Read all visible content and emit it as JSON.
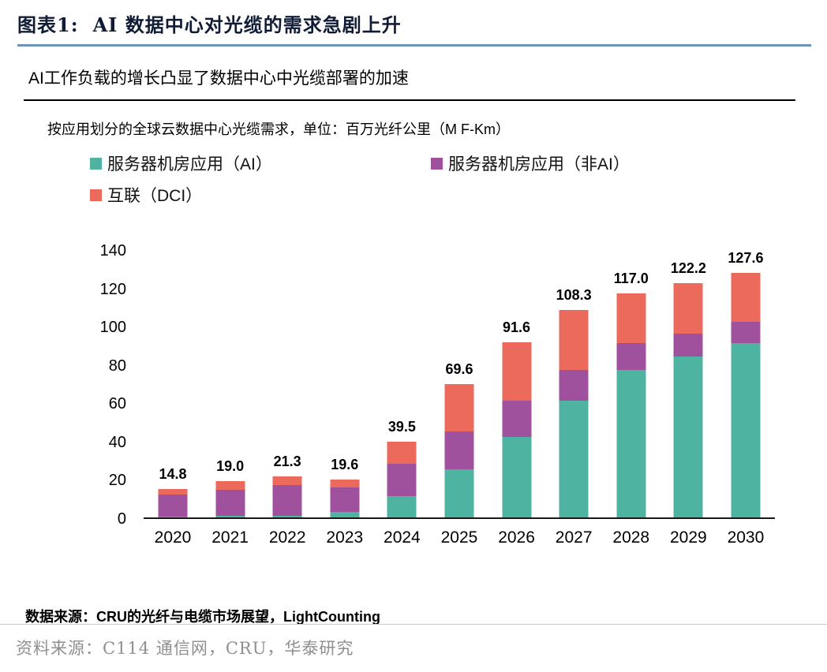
{
  "header": {
    "figure_label": "图表1:",
    "title": "AI 数据中心对光缆的需求急剧上升"
  },
  "subtitle": "AI工作负载的增长凸显了数据中心中光缆部署的加速",
  "chart_data": {
    "type": "bar",
    "stacked": true,
    "title": "按应用划分的全球云数据中心光缆需求，单位：百万光纤公里（M F-Km）",
    "categories": [
      "2020",
      "2021",
      "2022",
      "2023",
      "2024",
      "2025",
      "2026",
      "2027",
      "2028",
      "2029",
      "2030"
    ],
    "totals": [
      14.8,
      19.0,
      21.3,
      19.6,
      39.5,
      69.6,
      91.6,
      108.3,
      117.0,
      122.2,
      127.6
    ],
    "series": [
      {
        "name": "服务器机房应用（AI）",
        "color": "#4fb3a2",
        "values": [
          0.3,
          0.8,
          1.0,
          3.0,
          11.0,
          25.0,
          42.0,
          61.0,
          77.0,
          84.0,
          91.0
        ]
      },
      {
        "name": "服务器机房应用（非AI）",
        "color": "#a0519e",
        "values": [
          11.5,
          13.7,
          16.0,
          12.6,
          17.0,
          20.0,
          19.0,
          16.0,
          14.0,
          12.0,
          11.0
        ]
      },
      {
        "name": "互联（DCI）",
        "color": "#ec6a5c",
        "values": [
          3.0,
          4.5,
          4.3,
          4.0,
          11.5,
          24.6,
          30.6,
          31.3,
          26.0,
          26.2,
          25.6
        ]
      }
    ],
    "ylim": [
      0,
      140
    ],
    "yticks": [
      0,
      20,
      40,
      60,
      80,
      100,
      120,
      140
    ],
    "grid": false,
    "legend_position": "top"
  },
  "source_note": "数据来源：CRU的光纤与电缆市场展望，LightCounting",
  "footer_source": "资料来源：C114 通信网，CRU，华泰研究"
}
